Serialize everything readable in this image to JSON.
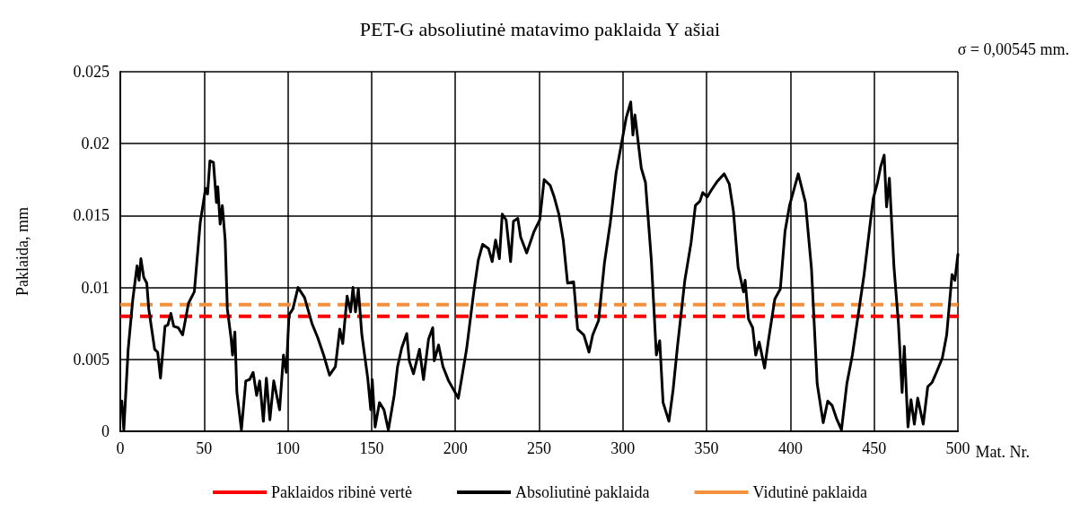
{
  "chart_data": {
    "type": "line",
    "title": "PET-G absoliutinė matavimo paklaida Y ašiai",
    "xlabel": "Mat. Nr.",
    "ylabel": "Paklaida, mm",
    "annotations": [
      "σ = 0,00545 mm."
    ],
    "xlim": [
      0,
      500
    ],
    "xticks": [
      0,
      50,
      100,
      150,
      200,
      250,
      300,
      350,
      400,
      450,
      500
    ],
    "ylim": [
      0,
      0.025
    ],
    "yticks": [
      0,
      0.005,
      0.01,
      0.015,
      0.02,
      0.025
    ],
    "grid": true,
    "legend": "bottom",
    "marker": "none",
    "ref_lines": [
      {
        "axis": "y",
        "value": 0.008,
        "label": "Paklaidos ribinė vertė",
        "color": "#ff0000",
        "line_style": "dashed"
      },
      {
        "axis": "y",
        "value": 0.0088,
        "label": "Vidutinė paklaida",
        "color": "#f4913f",
        "line_style": "dashed"
      }
    ],
    "series": [
      {
        "name": "Absoliutinė paklaida",
        "color": "#000000",
        "line_style": "solid",
        "x": [
          0.9,
          2.1,
          4.7,
          7.4,
          10,
          11.2,
          12.3,
          14,
          15.8,
          17,
          20.5,
          22.3,
          24,
          26.7,
          28.4,
          30.2,
          31.9,
          34.6,
          37.2,
          40.7,
          44.2,
          47.7,
          50.9,
          52.1,
          53.5,
          55.6,
          57.4,
          58.2,
          59.6,
          60.9,
          62.6,
          63.9,
          66.1,
          67,
          68.4,
          69.6,
          72.3,
          74.9,
          77.2,
          79.3,
          81.4,
          83.2,
          85.4,
          87.2,
          89.3,
          91.6,
          95.1,
          97.4,
          99.1,
          100.7,
          103,
          106.1,
          110,
          114.4,
          117.9,
          121.4,
          124.9,
          128.4,
          131,
          132.8,
          135.4,
          137.5,
          138.9,
          140.4,
          142.1,
          144.2,
          147.7,
          149.5,
          150.4,
          152.1,
          154.7,
          157.4,
          160,
          163.5,
          165.5,
          168,
          171,
          172.5,
          175,
          178.6,
          181,
          184,
          186.5,
          187.4,
          190,
          192.6,
          196,
          201.8,
          206.7,
          211,
          213.7,
          216.3,
          219.8,
          222,
          224,
          226.3,
          228,
          230.3,
          233,
          234.7,
          237.3,
          239,
          242.6,
          247,
          250.4,
          253,
          256.6,
          259,
          261.8,
          264.4,
          267,
          270.6,
          273,
          276.7,
          279.8,
          282,
          285.5,
          289,
          292.5,
          296,
          299.5,
          302,
          304.7,
          306,
          307.2,
          311,
          313.5,
          317,
          320,
          322,
          324,
          327.5,
          330,
          332.6,
          337,
          340.7,
          343.3,
          346,
          347.7,
          350.4,
          353,
          356.5,
          360.5,
          363.5,
          366,
          368.8,
          372,
          373,
          375,
          377.5,
          379.3,
          381.4,
          384.6,
          387,
          390.7,
          394,
          396.8,
          399.5,
          404.7,
          409,
          412.6,
          416,
          419.6,
          422.3,
          424.9,
          427.5,
          430.5,
          433.7,
          437,
          440.5,
          444,
          447.7,
          449.5,
          452,
          453.9,
          456,
          457.4,
          459.1,
          461.8,
          464.5,
          466.7,
          468,
          470.2,
          472,
          474,
          476,
          479.3,
          482,
          484.6,
          487.2,
          490.7,
          493.3,
          496.5,
          498.2,
          500
        ],
        "values": [
          0.0021,
          0.0001,
          0.0057,
          0.0091,
          0.0115,
          0.0105,
          0.012,
          0.0107,
          0.0103,
          0.0085,
          0.0057,
          0.0055,
          0.0037,
          0.0073,
          0.0074,
          0.0082,
          0.0073,
          0.0072,
          0.0067,
          0.0089,
          0.0097,
          0.0145,
          0.0169,
          0.0165,
          0.0188,
          0.0187,
          0.0159,
          0.017,
          0.0144,
          0.0157,
          0.0133,
          0.0085,
          0.0065,
          0.0053,
          0.0069,
          0.0027,
          0.0001,
          0.0035,
          0.0036,
          0.0041,
          0.0025,
          0.0035,
          0.0007,
          0.0037,
          0.0008,
          0.0035,
          0.0015,
          0.0053,
          0.0041,
          0.0081,
          0.0085,
          0.01,
          0.0093,
          0.0075,
          0.0065,
          0.0053,
          0.0039,
          0.0045,
          0.0071,
          0.0061,
          0.0094,
          0.0083,
          0.01,
          0.0083,
          0.0099,
          0.0067,
          0.0037,
          0.0015,
          0.0036,
          0.0003,
          0.002,
          0.0015,
          0.0001,
          0.0025,
          0.0045,
          0.0058,
          0.0068,
          0.0049,
          0.004,
          0.0057,
          0.0036,
          0.0064,
          0.0072,
          0.0049,
          0.006,
          0.0045,
          0.0035,
          0.0023,
          0.0057,
          0.0097,
          0.0119,
          0.013,
          0.0127,
          0.0118,
          0.0133,
          0.012,
          0.0151,
          0.0147,
          0.0118,
          0.0146,
          0.0148,
          0.0135,
          0.0124,
          0.0139,
          0.0147,
          0.0175,
          0.0171,
          0.0163,
          0.0151,
          0.0133,
          0.0103,
          0.0104,
          0.0071,
          0.0067,
          0.0055,
          0.0067,
          0.0077,
          0.0117,
          0.0145,
          0.018,
          0.0202,
          0.0218,
          0.0229,
          0.0206,
          0.022,
          0.0183,
          0.0173,
          0.0119,
          0.0053,
          0.0063,
          0.002,
          0.0007,
          0.0029,
          0.0059,
          0.0105,
          0.0131,
          0.0157,
          0.016,
          0.0166,
          0.0163,
          0.0168,
          0.0174,
          0.0179,
          0.0172,
          0.0153,
          0.0114,
          0.0097,
          0.0105,
          0.0078,
          0.0072,
          0.0053,
          0.0062,
          0.0044,
          0.0064,
          0.0092,
          0.0099,
          0.0139,
          0.0157,
          0.0179,
          0.0159,
          0.0113,
          0.0033,
          0.0006,
          0.0021,
          0.0018,
          0.0009,
          0.0001,
          0.0033,
          0.0053,
          0.0081,
          0.0109,
          0.0145,
          0.0162,
          0.0173,
          0.0184,
          0.0192,
          0.0156,
          0.0176,
          0.0115,
          0.0075,
          0.0027,
          0.0059,
          0.0003,
          0.0022,
          0.0005,
          0.0023,
          0.0005,
          0.0031,
          0.0034,
          0.0041,
          0.0051,
          0.0067,
          0.0109,
          0.0105,
          0.0123
        ]
      }
    ]
  }
}
